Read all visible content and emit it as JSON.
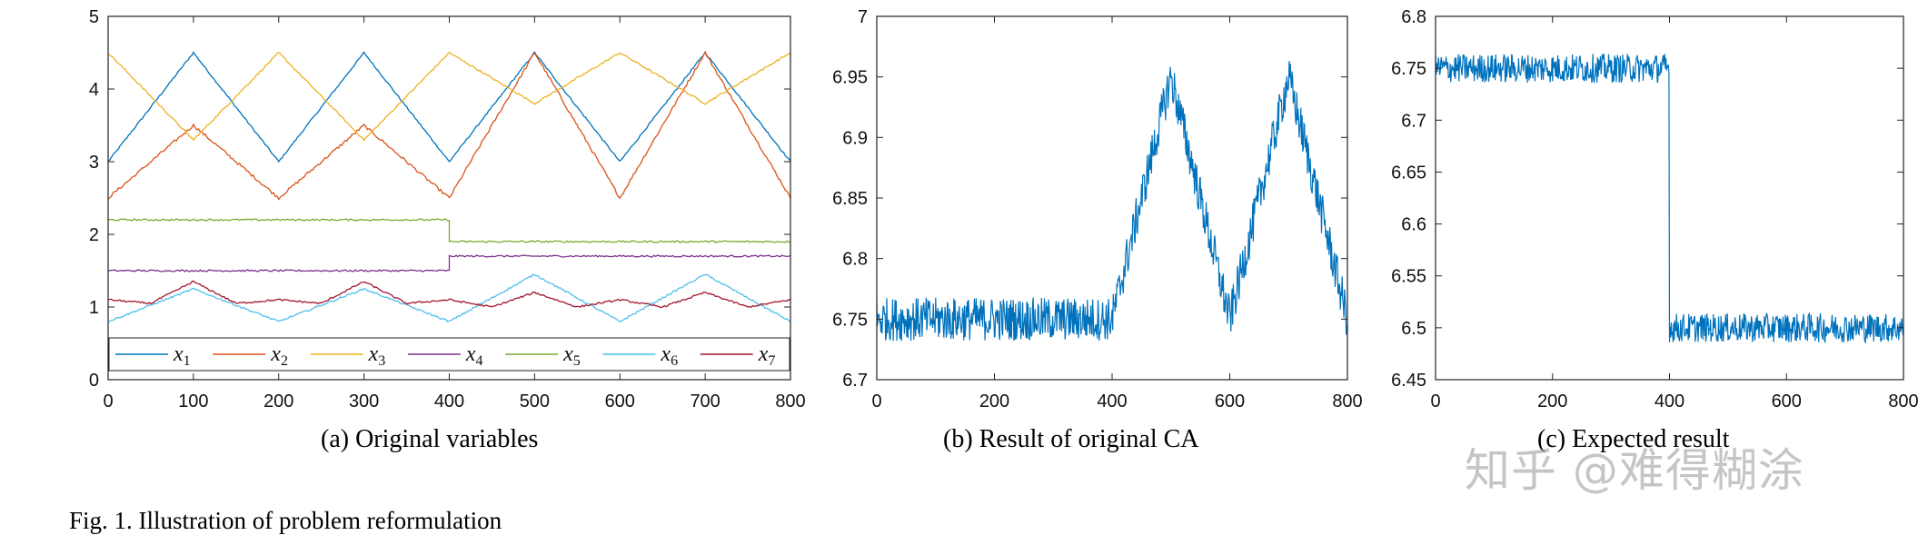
{
  "figure_caption": "Fig. 1.  Illustration of problem reformulation",
  "watermark": "知乎 @难得糊涂",
  "chart_data": [
    {
      "type": "line",
      "caption": "(a) Original variables",
      "xlim": [
        0,
        800
      ],
      "ylim": [
        0,
        5
      ],
      "xticks": [
        0,
        100,
        200,
        300,
        400,
        500,
        600,
        700,
        800
      ],
      "yticks": [
        0,
        1,
        2,
        3,
        4,
        5
      ],
      "grid": false,
      "legend": "bottom, one row",
      "series": [
        {
          "name": "x",
          "sub": "1",
          "color": "#0072BD",
          "x": [
            0,
            100,
            200,
            300,
            400,
            500,
            600,
            700,
            800
          ],
          "y": [
            3.0,
            4.5,
            3.0,
            4.5,
            3.0,
            4.5,
            3.0,
            4.5,
            3.0
          ]
        },
        {
          "name": "x",
          "sub": "2",
          "color": "#D95319",
          "x": [
            0,
            100,
            200,
            300,
            400,
            500,
            600,
            700,
            800
          ],
          "y": [
            2.5,
            3.5,
            2.5,
            3.5,
            2.5,
            4.5,
            2.5,
            4.5,
            2.5
          ]
        },
        {
          "name": "x",
          "sub": "3",
          "color": "#EDB120",
          "x": [
            0,
            100,
            200,
            300,
            400,
            500,
            600,
            700,
            800
          ],
          "y": [
            4.5,
            3.3,
            4.5,
            3.3,
            4.5,
            3.8,
            4.5,
            3.8,
            4.5
          ]
        },
        {
          "name": "x",
          "sub": "4",
          "color": "#7E2F8E",
          "x": [
            0,
            400,
            400,
            800
          ],
          "y": [
            1.5,
            1.5,
            1.7,
            1.7
          ]
        },
        {
          "name": "x",
          "sub": "5",
          "color": "#77AC30",
          "x": [
            0,
            400,
            400,
            800
          ],
          "y": [
            2.2,
            2.2,
            1.9,
            1.9
          ]
        },
        {
          "name": "x",
          "sub": "6",
          "color": "#4DBEEE",
          "x": [
            0,
            100,
            200,
            300,
            400,
            500,
            600,
            700,
            800
          ],
          "y": [
            0.8,
            1.25,
            0.8,
            1.25,
            0.8,
            1.45,
            0.8,
            1.45,
            0.8
          ]
        },
        {
          "name": "x",
          "sub": "7",
          "color": "#A2142F",
          "x": [
            0,
            50,
            100,
            150,
            200,
            250,
            300,
            350,
            400,
            450,
            500,
            550,
            600,
            650,
            700,
            750,
            800
          ],
          "y": [
            1.1,
            1.05,
            1.35,
            1.05,
            1.1,
            1.05,
            1.35,
            1.05,
            1.1,
            1.0,
            1.2,
            1.0,
            1.1,
            1.0,
            1.2,
            1.0,
            1.1
          ]
        }
      ]
    },
    {
      "type": "line",
      "caption": "(b) Result of original CA",
      "xlim": [
        0,
        800
      ],
      "ylim": [
        6.7,
        7.0
      ],
      "xticks": [
        0,
        200,
        400,
        600,
        800
      ],
      "yticks": [
        6.7,
        6.75,
        6.8,
        6.85,
        6.9,
        6.95,
        7.0
      ],
      "ytick_labels": [
        "6.7",
        "6.75",
        "6.8",
        "6.85",
        "6.9",
        "6.95",
        "7"
      ],
      "grid": false,
      "series": [
        {
          "color": "#0072BD",
          "x": [
            0,
            100,
            200,
            300,
            400,
            450,
            500,
            550,
            600,
            650,
            700,
            750,
            800
          ],
          "y": [
            6.75,
            6.75,
            6.75,
            6.75,
            6.75,
            6.85,
            6.95,
            6.85,
            6.75,
            6.85,
            6.95,
            6.85,
            6.75
          ]
        }
      ]
    },
    {
      "type": "line",
      "caption": "(c) Expected result",
      "xlim": [
        0,
        800
      ],
      "ylim": [
        6.45,
        6.8
      ],
      "xticks": [
        0,
        200,
        400,
        600,
        800
      ],
      "yticks": [
        6.45,
        6.5,
        6.55,
        6.6,
        6.65,
        6.7,
        6.75,
        6.8
      ],
      "ytick_labels": [
        "6.45",
        "6.5",
        "6.55",
        "6.6",
        "6.65",
        "6.7",
        "6.75",
        "6.8"
      ],
      "grid": false,
      "series": [
        {
          "color": "#0072BD",
          "x": [
            0,
            399,
            400,
            800
          ],
          "y": [
            6.75,
            6.75,
            6.5,
            6.5
          ]
        }
      ]
    }
  ]
}
